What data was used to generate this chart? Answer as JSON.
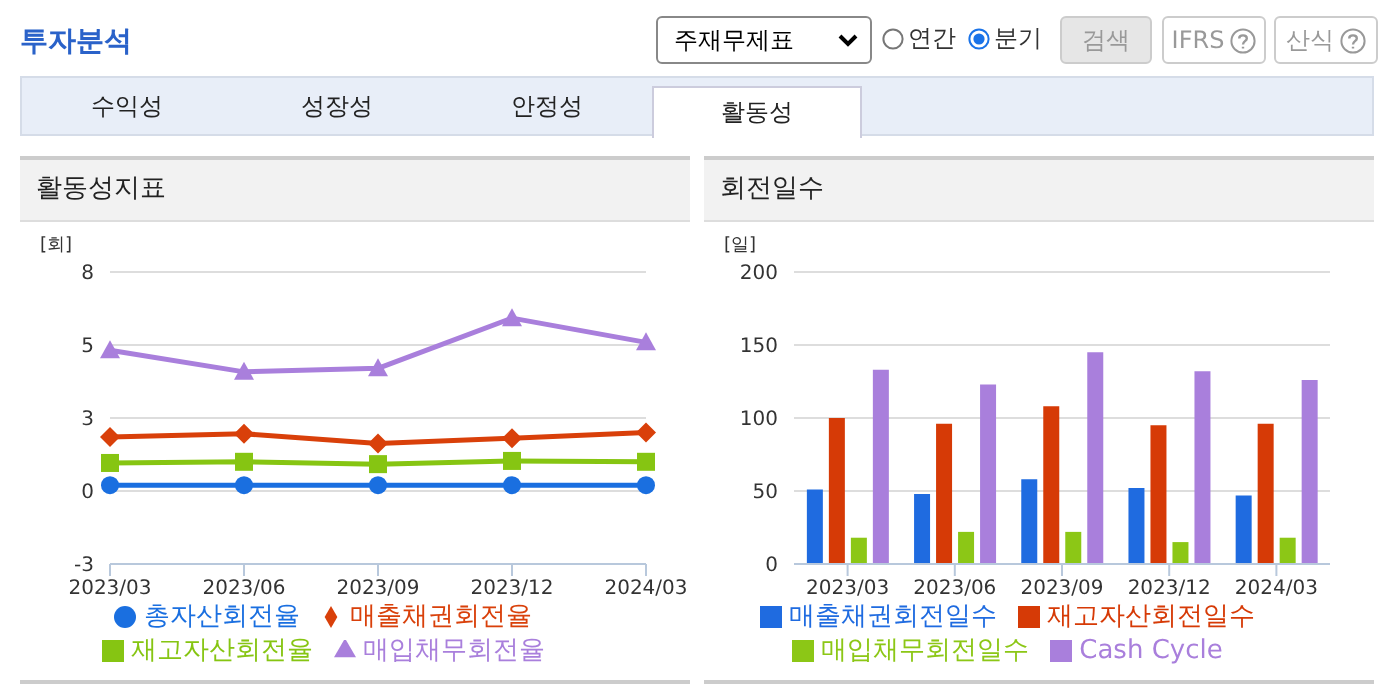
{
  "chart_data": [
    {
      "type": "line",
      "title": "활동성지표",
      "ylabel": "[회]",
      "categories": [
        "2023/03",
        "2023/06",
        "2023/09",
        "2023/12",
        "2024/03"
      ],
      "series": [
        {
          "name": "총자산회전율",
          "color": "#1a6fe0",
          "marker": "circle",
          "values": [
            0.2,
            0.2,
            0.2,
            0.2,
            0.2
          ]
        },
        {
          "name": "매출채권회전율",
          "color": "#d9400a",
          "marker": "diamond",
          "values": [
            1.85,
            1.96,
            1.63,
            1.81,
            2.0
          ]
        },
        {
          "name": "재고자산회전율",
          "color": "#86c512",
          "marker": "square",
          "values": [
            0.96,
            1.0,
            0.92,
            1.03,
            1.0
          ]
        },
        {
          "name": "매입채무회전율",
          "color": "#a97fdc",
          "marker": "triangle",
          "values": [
            4.82,
            4.08,
            4.2,
            5.92,
            5.09
          ]
        }
      ],
      "ylim": [
        -2.5,
        7.5
      ],
      "yticks": [
        {
          "value": -2.5,
          "label": "-3"
        },
        0,
        {
          "value": 2.5,
          "label": "3"
        },
        5,
        {
          "value": 7.5,
          "label": "8"
        }
      ],
      "grid": "y",
      "legend": "bottom",
      "annotations": [
        "투자분석",
        "주재무제표",
        "연간",
        "분기",
        "검색",
        "IFRS",
        "산식",
        "수익성",
        "성장성",
        "안정성",
        "활동성"
      ]
    },
    {
      "type": "bar",
      "title": "회전일수",
      "ylabel": "[일]",
      "categories": [
        "2023/03",
        "2023/06",
        "2023/09",
        "2023/12",
        "2024/03"
      ],
      "series": [
        {
          "name": "매출채권회전일수",
          "color": "#1f6be0",
          "values": [
            51,
            48,
            58,
            52,
            47
          ]
        },
        {
          "name": "재고자산회전일수",
          "color": "#d63a06",
          "values": [
            100,
            96,
            108,
            95,
            96
          ]
        },
        {
          "name": "매입채무회전일수",
          "color": "#8cc716",
          "values": [
            18,
            22,
            22,
            15,
            18
          ]
        },
        {
          "name": "Cash Cycle",
          "color": "#a97fdc",
          "values": [
            133,
            123,
            145,
            132,
            126
          ]
        }
      ],
      "ylim": [
        0,
        200
      ],
      "yticks": [
        0,
        50,
        100,
        150,
        200
      ],
      "grid": "y",
      "legend": "bottom"
    }
  ]
}
